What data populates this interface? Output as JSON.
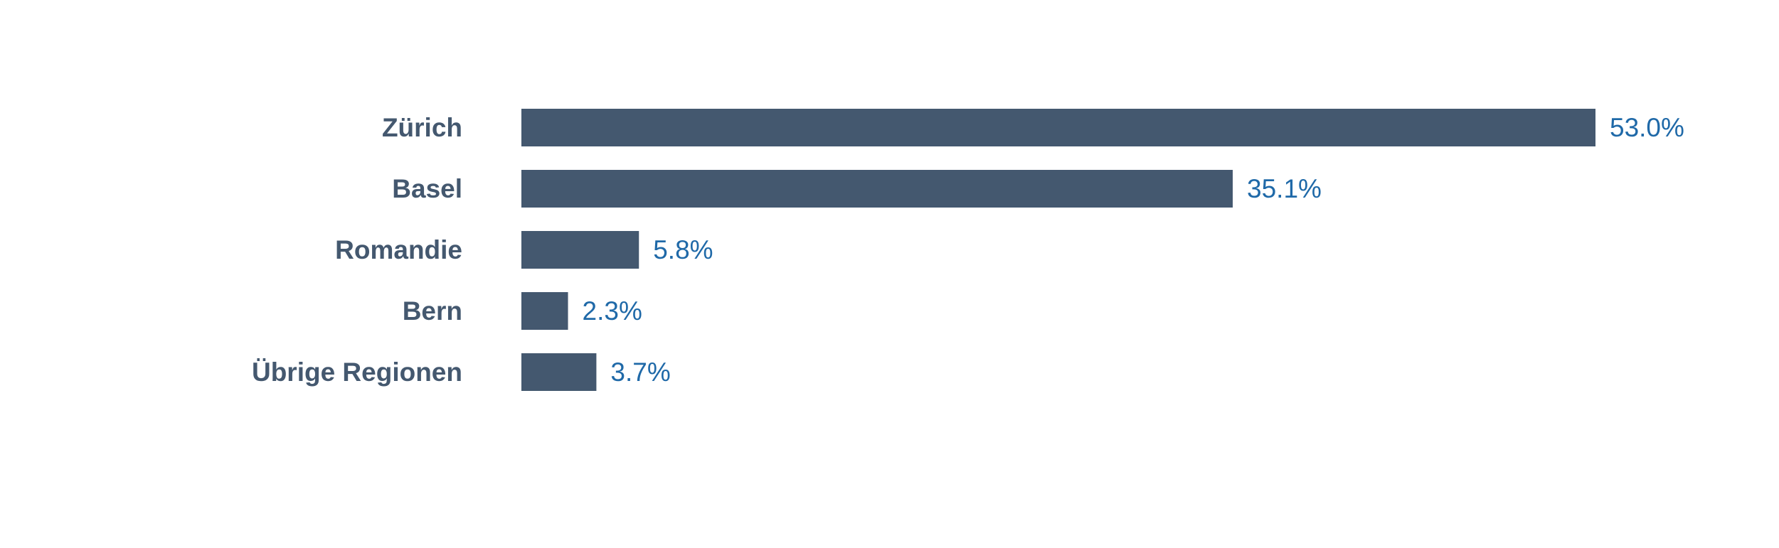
{
  "chart_data": {
    "type": "bar",
    "orientation": "horizontal",
    "title": "",
    "xlabel": "",
    "ylabel": "",
    "categories": [
      "Zürich",
      "Basel",
      "Romandie",
      "Bern",
      "Übrige Regionen"
    ],
    "values": [
      53.0,
      35.1,
      5.8,
      2.3,
      3.7
    ],
    "value_labels": [
      "53.0%",
      "35.1%",
      "5.8%",
      "2.3%",
      "3.7%"
    ],
    "unit": "%",
    "xlim": [
      0,
      53.0
    ],
    "grid": false,
    "legend": "none"
  },
  "colors": {
    "bar": "#44586f",
    "category_text": "#44586f",
    "value_text": "#1f69a8",
    "background": "#ffffff"
  }
}
